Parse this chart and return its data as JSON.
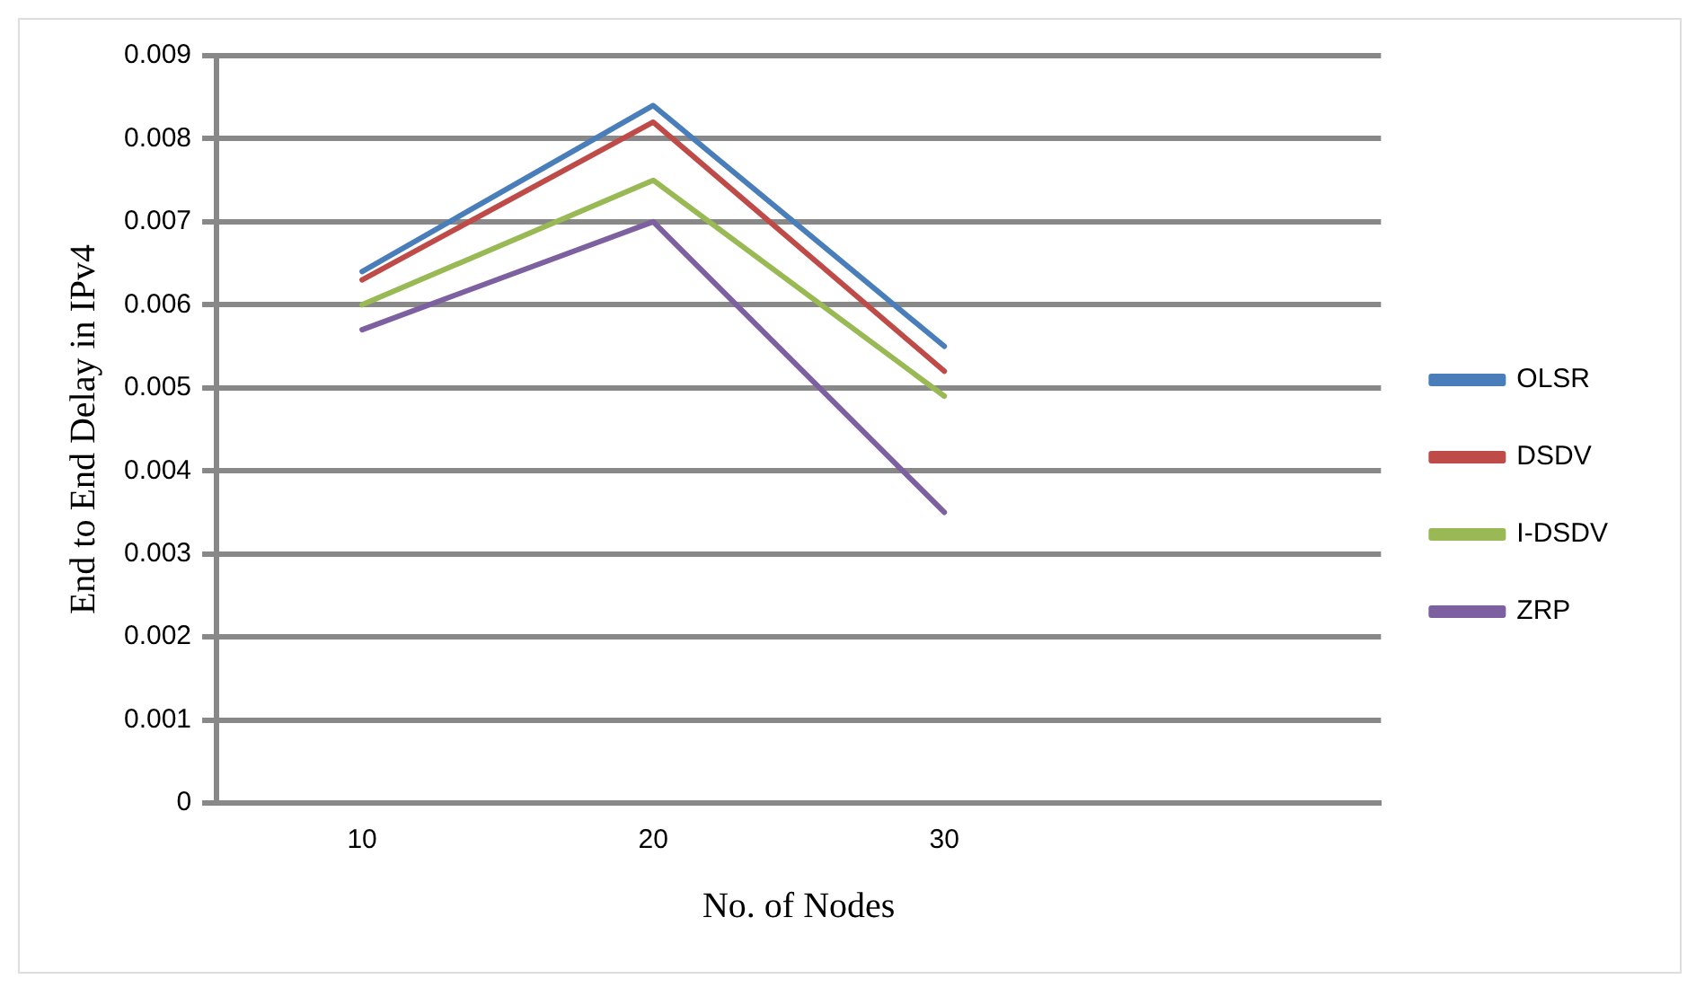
{
  "chart_data": {
    "type": "line",
    "xlabel": "No. of Nodes",
    "ylabel": "End to End Delay in IPv4",
    "categories": [
      "10",
      "20",
      "30",
      null
    ],
    "ylim": [
      0,
      0.009
    ],
    "yticks": [
      0,
      0.001,
      0.002,
      0.003,
      0.004,
      0.005,
      0.006,
      0.007,
      0.008,
      0.009
    ],
    "grid": "y",
    "legend": "right",
    "marker": "none",
    "line_style": "solid",
    "series": [
      {
        "name": "OLSR",
        "color": "#4a7ebb",
        "values": [
          0.0064,
          0.0084,
          0.0055,
          null
        ]
      },
      {
        "name": "DSDV",
        "color": "#be4b48",
        "values": [
          0.0063,
          0.0082,
          0.0052,
          null
        ]
      },
      {
        "name": "I-DSDV",
        "color": "#98b954",
        "values": [
          0.006,
          0.0075,
          0.0049,
          null
        ]
      },
      {
        "name": "ZRP",
        "color": "#7d60a0",
        "values": [
          0.0057,
          0.007,
          0.0035,
          null
        ]
      }
    ]
  }
}
